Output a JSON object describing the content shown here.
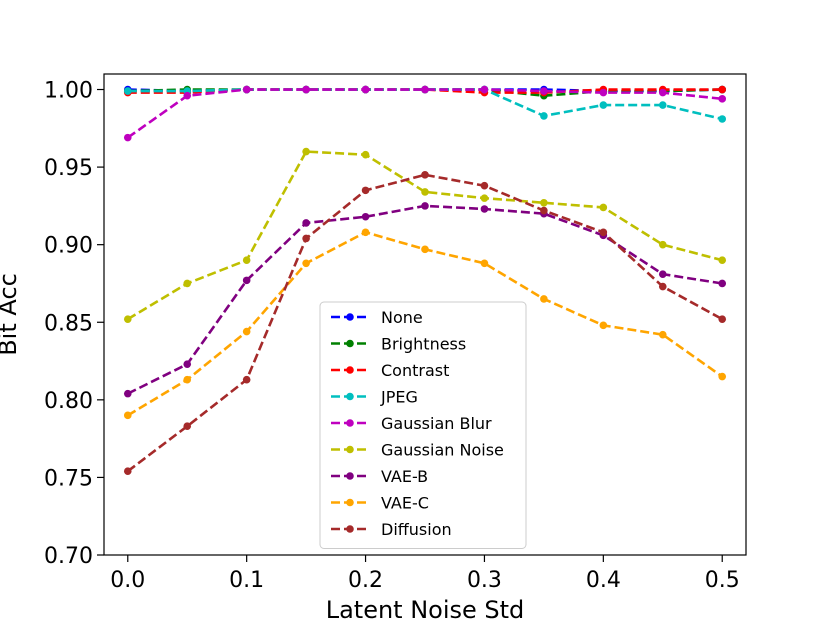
{
  "chart_data": {
    "type": "line",
    "title": "",
    "xlabel": "Latent Noise Std",
    "ylabel": "Bit Acc",
    "xlim": [
      -0.02,
      0.52
    ],
    "ylim": [
      0.7,
      1.01
    ],
    "xticks": [
      0.0,
      0.1,
      0.2,
      0.3,
      0.4,
      0.5
    ],
    "xtick_labels": [
      "0.0",
      "0.1",
      "0.2",
      "0.3",
      "0.4",
      "0.5"
    ],
    "yticks": [
      0.7,
      0.75,
      0.8,
      0.85,
      0.9,
      0.95,
      1.0
    ],
    "ytick_labels": [
      "0.70",
      "0.75",
      "0.80",
      "0.85",
      "0.90",
      "0.95",
      "1.00"
    ],
    "legend_position": "center-bottom",
    "x": [
      0.0,
      0.05,
      0.1,
      0.15,
      0.2,
      0.25,
      0.3,
      0.35,
      0.4,
      0.45,
      0.5
    ],
    "series": [
      {
        "name": "None",
        "color": "#0000ff",
        "values": [
          1.0,
          0.999,
          1.0,
          1.0,
          1.0,
          1.0,
          1.0,
          1.0,
          0.999,
          0.999,
          1.0
        ]
      },
      {
        "name": "Brightness",
        "color": "#008000",
        "values": [
          0.999,
          1.0,
          1.0,
          1.0,
          1.0,
          1.0,
          1.0,
          0.996,
          0.999,
          0.999,
          1.0
        ]
      },
      {
        "name": "Contrast",
        "color": "#ff0000",
        "values": [
          0.998,
          0.998,
          1.0,
          1.0,
          1.0,
          1.0,
          0.998,
          0.998,
          1.0,
          1.0,
          1.0
        ]
      },
      {
        "name": "JPEG",
        "color": "#00bfbf",
        "values": [
          0.999,
          0.999,
          1.0,
          1.0,
          1.0,
          1.0,
          1.0,
          0.983,
          0.99,
          0.99,
          0.981
        ]
      },
      {
        "name": "Gaussian Blur",
        "color": "#bf00bf",
        "values": [
          0.969,
          0.996,
          1.0,
          1.0,
          1.0,
          1.0,
          1.0,
          0.999,
          0.998,
          0.998,
          0.994
        ]
      },
      {
        "name": "Gaussian Noise",
        "color": "#bfbf00",
        "values": [
          0.852,
          0.875,
          0.89,
          0.96,
          0.958,
          0.934,
          0.93,
          0.927,
          0.924,
          0.9,
          0.89
        ]
      },
      {
        "name": "VAE-B",
        "color": "#800080",
        "values": [
          0.804,
          0.823,
          0.877,
          0.914,
          0.918,
          0.925,
          0.923,
          0.92,
          0.906,
          0.881,
          0.875
        ]
      },
      {
        "name": "VAE-C",
        "color": "#ffa500",
        "values": [
          0.79,
          0.813,
          0.844,
          0.888,
          0.908,
          0.897,
          0.888,
          0.865,
          0.848,
          0.842,
          0.815
        ]
      },
      {
        "name": "Diffusion",
        "color": "#a52a2a",
        "values": [
          0.754,
          0.783,
          0.813,
          0.904,
          0.935,
          0.945,
          0.938,
          0.922,
          0.908,
          0.873,
          0.852
        ]
      }
    ]
  }
}
